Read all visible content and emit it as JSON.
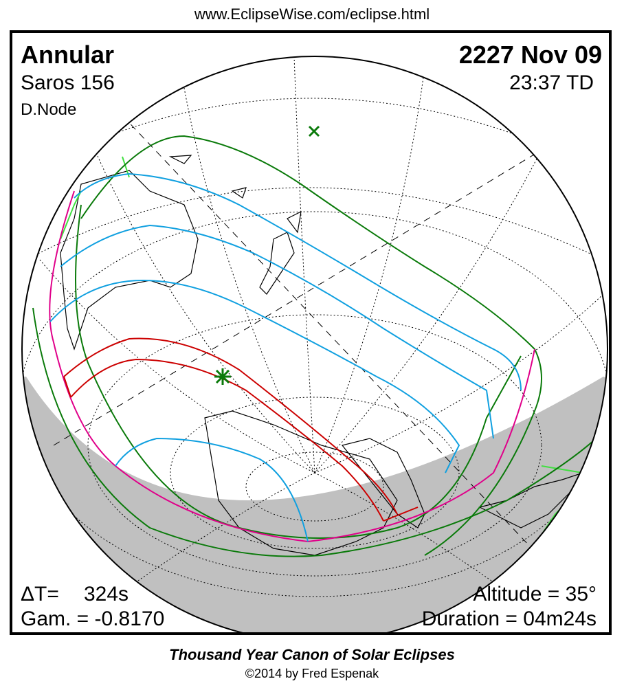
{
  "header": {
    "url": "www.EclipseWise.com/eclipse.html"
  },
  "eclipse": {
    "type": "Annular",
    "date": "2227 Nov 09",
    "saros": "Saros 156",
    "time": "23:37 TD",
    "node": "D.Node",
    "delta_t_label": "ΔT=",
    "delta_t_value": "324s",
    "gamma": "Gam. = -0.8170",
    "altitude": "Altitude = 35°",
    "duration": "Duration = 04m24s"
  },
  "footer": {
    "title": "Thousand Year Canon of Solar Eclipses",
    "copyright": "©2014 by Fred Espenak"
  },
  "map": {
    "colors": {
      "night": "#c0c0c0",
      "central_path": "#cc0000",
      "penumbral_limits": "#0a7a0a",
      "rise_set_curves": "#e0008a",
      "magnitude_contours": "#10a0e0",
      "land_outline": "#000000",
      "sunset_marks": "#40e040"
    },
    "icons": {
      "greatest_eclipse": "green-asterisk-icon",
      "subsolar_point": "green-cross-icon"
    }
  }
}
